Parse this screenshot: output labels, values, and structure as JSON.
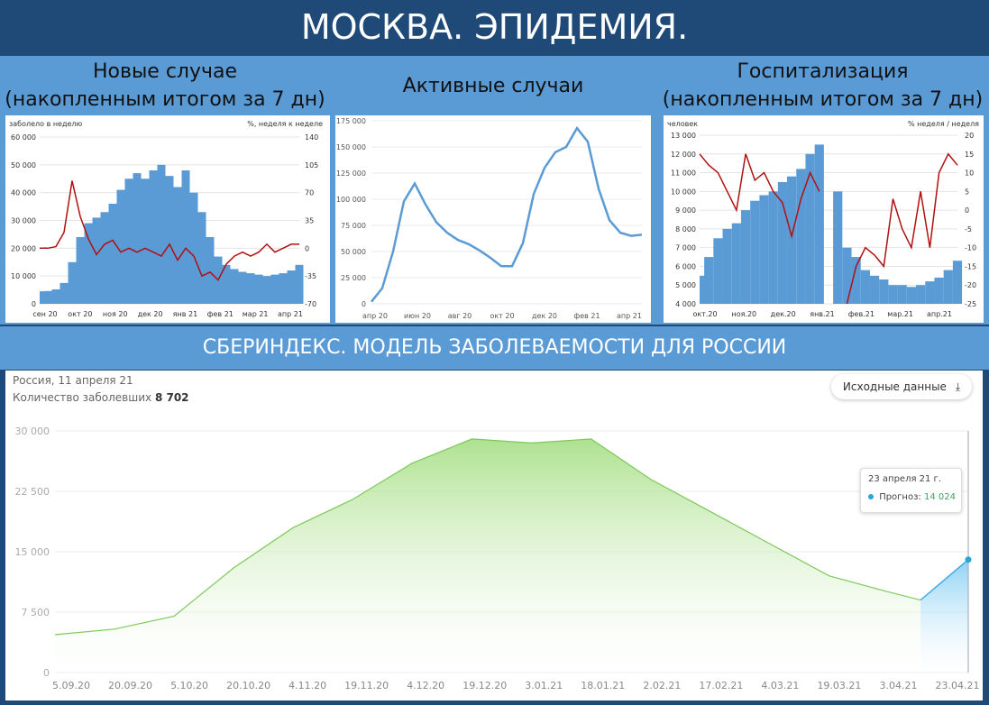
{
  "header": {
    "title": "МОСКВА. ЭПИДЕМИЯ."
  },
  "panels": {
    "new_cases_title_line1": "Новые случае",
    "new_cases_title_line2": "(накопленным итогом за 7 дн)",
    "active_title": "Активные случаи",
    "hosp_title_line1": "Госпитализация",
    "hosp_title_line2": "(накопленным итогом за 7 дн)"
  },
  "section2": {
    "title": "СБЕРИНДЕКС. МОДЕЛЬ ЗАБОЛЕВАЕМОСТИ ДЛЯ РОССИИ"
  },
  "sber": {
    "region_date": "Россия, 11 апреля 21",
    "count_label": "Количество заболевших",
    "count_value": "8 702",
    "download_label": "Исходные данные",
    "tooltip_date": "23 апреля 21 г.",
    "tooltip_label": "Прогноз:",
    "tooltip_value": "14 024"
  },
  "colors": {
    "bar_blue": "#5b9bd5",
    "line_red": "#b01010",
    "line_blue": "#5b9bd5",
    "area_green": "#8ed16a",
    "forecast_blue": "#6ec6f0"
  },
  "chart_data": [
    {
      "type": "bar",
      "title": "Новые случае (накопленным итогом за 7 дн)",
      "ylabel": "заболело в неделю",
      "y2label": "%, неделя к неделе",
      "ylim": [
        0,
        60000
      ],
      "y2lim": [
        -70,
        140
      ],
      "yticks": [
        "0",
        "10 000",
        "20 000",
        "30 000",
        "40 000",
        "50 000",
        "60 000"
      ],
      "y2ticks": [
        "-70",
        "-35",
        "0",
        "35",
        "70",
        "105",
        "140"
      ],
      "xticks": [
        "сен 20",
        "окт 20",
        "ноя 20",
        "дек 20",
        "янв 21",
        "фев 21",
        "мар 21",
        "апр 21"
      ],
      "x": [
        0,
        7,
        14,
        21,
        28,
        35,
        42,
        49,
        56,
        63,
        70,
        77,
        84,
        91,
        98,
        105,
        112,
        119,
        126,
        133,
        140,
        147,
        154,
        161,
        168,
        175,
        182,
        189,
        196,
        203,
        210,
        217,
        224
      ],
      "series": [
        {
          "kind": "bar",
          "values": [
            4500,
            4600,
            5200,
            7500,
            15000,
            24000,
            29000,
            31000,
            33000,
            36000,
            41000,
            45000,
            47000,
            45000,
            48000,
            50000,
            46000,
            42000,
            48000,
            40000,
            33000,
            24000,
            17000,
            14000,
            12500,
            11500,
            11000,
            10500,
            10000,
            10500,
            11000,
            12000,
            14000
          ]
        },
        {
          "kind": "line",
          "axis": "right",
          "values": [
            0,
            0,
            2,
            20,
            85,
            40,
            12,
            -8,
            5,
            10,
            -5,
            0,
            -5,
            0,
            -5,
            -10,
            5,
            -15,
            0,
            -10,
            -35,
            -30,
            -40,
            -20,
            -10,
            -5,
            -10,
            -5,
            5,
            -5,
            0,
            5,
            5
          ]
        }
      ]
    },
    {
      "type": "line",
      "title": "Активные случаи",
      "ylim": [
        0,
        175000
      ],
      "yticks": [
        "0",
        "25 000",
        "50 000",
        "75 000",
        "100 000",
        "125 000",
        "150 000",
        "175 000"
      ],
      "xticks": [
        "апр 20",
        "июн 20",
        "авг 20",
        "окт 20",
        "дек 20",
        "фев 21",
        "апр 21"
      ],
      "x": [
        0,
        15,
        30,
        45,
        60,
        75,
        90,
        105,
        120,
        135,
        150,
        165,
        180,
        195,
        210,
        225,
        240,
        255,
        270,
        285,
        300,
        315,
        330,
        345,
        360,
        375
      ],
      "series": [
        {
          "kind": "line",
          "values": [
            2000,
            15000,
            50000,
            98000,
            115000,
            95000,
            78000,
            68000,
            61000,
            57000,
            51000,
            44000,
            36000,
            36000,
            58000,
            105000,
            130000,
            145000,
            150000,
            168000,
            155000,
            110000,
            80000,
            68000,
            65000,
            66000
          ]
        }
      ]
    },
    {
      "type": "bar",
      "title": "Госпитализация (накопленным итогом за 7 дн)",
      "ylabel": "человек",
      "y2label": "% неделя / неделя",
      "ylim": [
        4000,
        13000
      ],
      "y2lim": [
        -25,
        20
      ],
      "yticks": [
        "4 000",
        "5 000",
        "6 000",
        "7 000",
        "8 000",
        "9 000",
        "10 000",
        "11 000",
        "12 000",
        "13 000"
      ],
      "y2ticks": [
        "-25",
        "-20",
        "-15",
        "-10",
        "-5",
        "0",
        "5",
        "10",
        "15",
        "20"
      ],
      "xticks": [
        "окт.20",
        "ноя.20",
        "дек.20",
        "янв.21",
        "фев.21",
        "мар.21",
        "апр.21"
      ],
      "x": [
        0,
        7,
        14,
        21,
        28,
        35,
        42,
        49,
        56,
        63,
        70,
        77,
        84,
        91,
        98,
        105,
        112,
        119,
        126,
        133,
        140,
        147,
        154,
        161,
        168,
        175,
        182,
        189,
        196
      ],
      "series": [
        {
          "kind": "bar",
          "values": [
            5500,
            6500,
            7500,
            8000,
            8300,
            9000,
            9500,
            9800,
            10000,
            10500,
            10800,
            11200,
            12000,
            12500,
            null,
            10000,
            7000,
            6500,
            5800,
            5500,
            5300,
            5000,
            5000,
            4900,
            5000,
            5200,
            5400,
            5800,
            6300
          ]
        },
        {
          "kind": "line",
          "axis": "right",
          "values": [
            15,
            12,
            10,
            5,
            0,
            15,
            8,
            10,
            5,
            2,
            -7,
            3,
            10,
            5,
            null,
            null,
            -25,
            -15,
            -10,
            -12,
            -15,
            3,
            -5,
            -10,
            5,
            -10,
            10,
            15,
            12
          ]
        }
      ]
    },
    {
      "type": "area",
      "title": "",
      "ylim": [
        0,
        30000
      ],
      "yticks": [
        "0",
        "7 500",
        "15 000",
        "22 500",
        "30 000"
      ],
      "xticks": [
        "5.09.20",
        "20.09.20",
        "5.10.20",
        "20.10.20",
        "4.11.20",
        "19.11.20",
        "4.12.20",
        "19.12.20",
        "3.01.21",
        "18.01.21",
        "2.02.21",
        "17.02.21",
        "4.03.21",
        "19.03.21",
        "3.04.21",
        "23.04.21"
      ],
      "x": [
        "2020-09-05",
        "2020-09-20",
        "2020-10-05",
        "2020-10-20",
        "2020-11-04",
        "2020-11-19",
        "2020-12-04",
        "2020-12-19",
        "2021-01-03",
        "2021-01-18",
        "2021-02-02",
        "2021-02-17",
        "2021-03-04",
        "2021-03-19",
        "2021-04-03",
        "2021-04-11",
        "2021-04-23"
      ],
      "series": [
        {
          "name": "",
          "kind": "area",
          "values": [
            4700,
            5400,
            7000,
            13000,
            18000,
            21500,
            26000,
            29000,
            28500,
            29000,
            24000,
            20000,
            16000,
            12000,
            10000,
            9000,
            9000
          ]
        },
        {
          "name": "Прогноз",
          "kind": "forecast",
          "from_index": 15,
          "values": [
            null,
            null,
            null,
            null,
            null,
            null,
            null,
            null,
            null,
            null,
            null,
            null,
            null,
            null,
            null,
            9000,
            14024
          ]
        }
      ]
    }
  ]
}
